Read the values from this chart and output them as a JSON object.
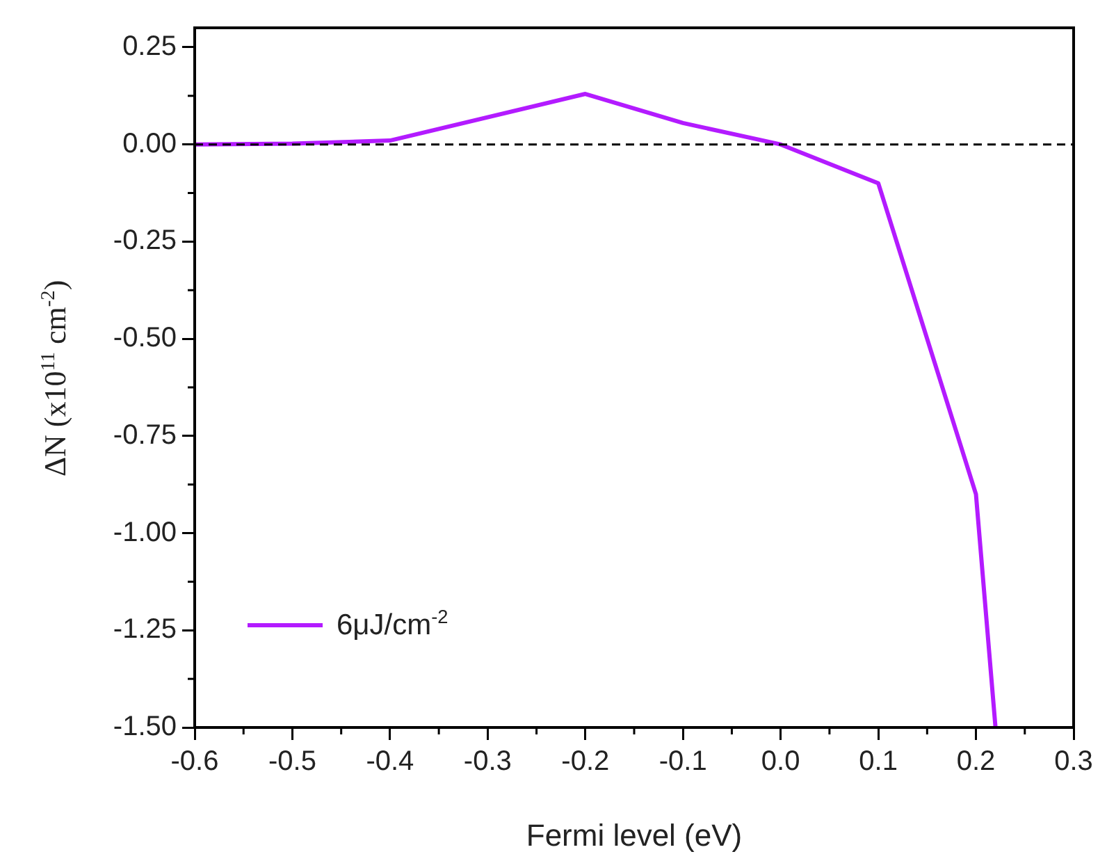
{
  "chart_data": {
    "type": "line",
    "xlabel": "Fermi level (eV)",
    "ylabel": "ΔN (x10$^{11}$ cm$^{-2}$)",
    "x": [
      -0.6,
      -0.5,
      -0.4,
      -0.2,
      -0.1,
      0.0,
      0.1,
      0.2,
      0.22
    ],
    "series": [
      {
        "name": "6μJ/cm$^{-2}$",
        "color": "#b31bff",
        "values": [
          0,
          0.002,
          0.01,
          0.13,
          0.055,
          0,
          -0.1,
          -0.9,
          -1.5
        ]
      }
    ],
    "xlim": [
      -0.6,
      0.3
    ],
    "xticks": [
      -0.6,
      -0.5,
      -0.4,
      -0.3,
      -0.2,
      -0.1,
      {
        "value": 0,
        "label": "0.0"
      },
      0.1,
      0.2,
      0.3
    ],
    "ylim": [
      -1.5,
      0.3
    ],
    "yticks": [
      {
        "value": 0.25,
        "label": "0.25"
      },
      {
        "value": 0,
        "label": "0.00"
      },
      {
        "value": -0.25,
        "label": "-0.25"
      },
      {
        "value": -0.5,
        "label": "-0.50"
      },
      {
        "value": -0.75,
        "label": "-0.75"
      },
      {
        "value": -1,
        "label": "-1.00"
      },
      {
        "value": -1.25,
        "label": "-1.25"
      },
      {
        "value": -1.5,
        "label": "-1.50"
      }
    ],
    "ref_lines": [
      {
        "axis": "y",
        "value": 0,
        "color": "#000000",
        "line_style": "dashed"
      }
    ],
    "grid": false,
    "legend": "bottom left",
    "marker": "none",
    "line_style": "solid"
  }
}
